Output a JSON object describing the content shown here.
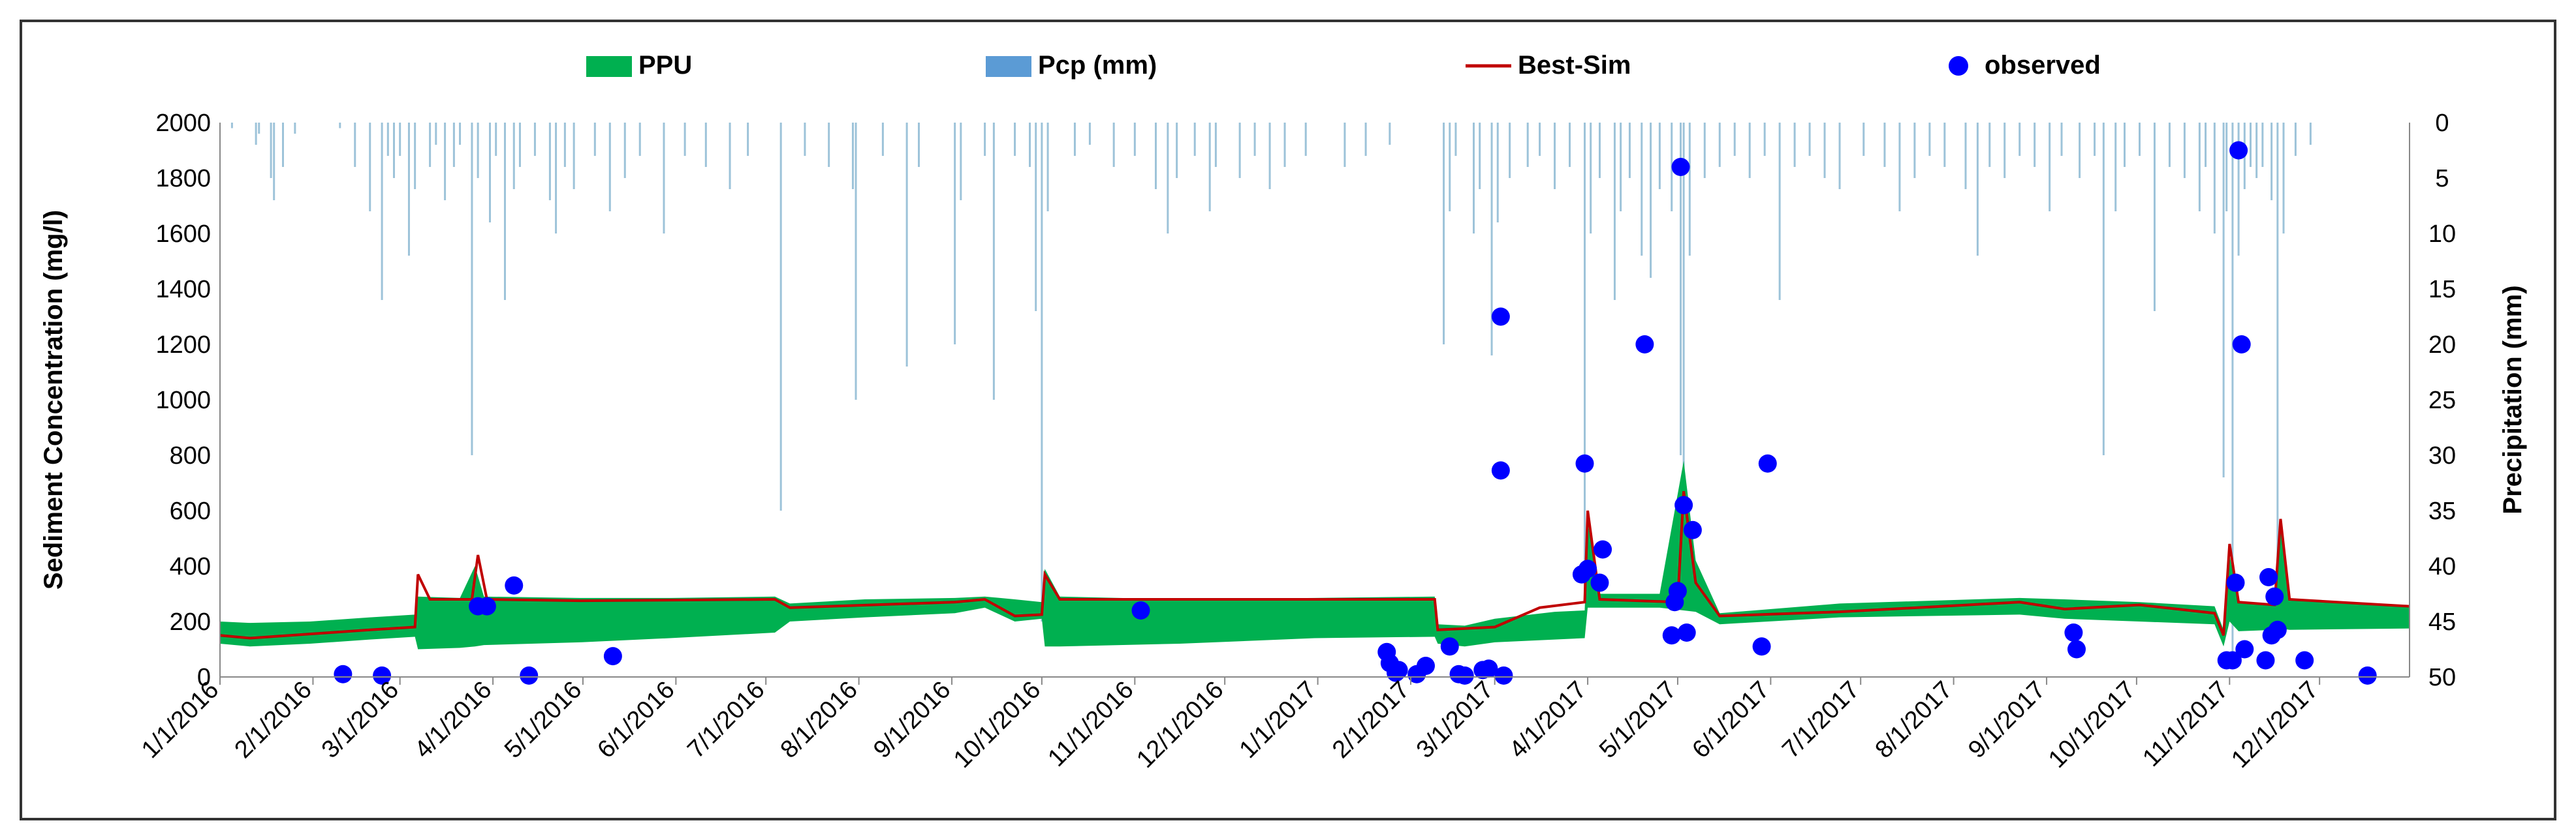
{
  "chart_data": {
    "type": "line",
    "title": "",
    "ylabel": "Sediment Concentration  (mg/l)",
    "y2label": "Precipitation (mm)",
    "xlabel": "",
    "ylim": [
      0,
      2000
    ],
    "y2lim": [
      0,
      50
    ],
    "y2_inverted": true,
    "yticks": [
      0,
      200,
      400,
      600,
      800,
      1000,
      1200,
      1400,
      1600,
      1800,
      2000
    ],
    "y2ticks": [
      0,
      5,
      10,
      15,
      20,
      25,
      30,
      35,
      40,
      45,
      50
    ],
    "xrange_days": [
      0,
      730
    ],
    "xticks": [
      {
        "label": "1/1/2016",
        "day": 0
      },
      {
        "label": "2/1/2016",
        "day": 31
      },
      {
        "label": "3/1/2016",
        "day": 60
      },
      {
        "label": "4/1/2016",
        "day": 91
      },
      {
        "label": "5/1/2016",
        "day": 121
      },
      {
        "label": "6/1/2016",
        "day": 152
      },
      {
        "label": "7/1/2016",
        "day": 182
      },
      {
        "label": "8/1/2016",
        "day": 213
      },
      {
        "label": "9/1/2016",
        "day": 244
      },
      {
        "label": "10/1/2016",
        "day": 274
      },
      {
        "label": "11/1/2016",
        "day": 305
      },
      {
        "label": "12/1/2016",
        "day": 335
      },
      {
        "label": "1/1/2017",
        "day": 366
      },
      {
        "label": "2/1/2017",
        "day": 397
      },
      {
        "label": "3/1/2017",
        "day": 425
      },
      {
        "label": "4/1/2017",
        "day": 456
      },
      {
        "label": "5/1/2017",
        "day": 486
      },
      {
        "label": "6/1/2017",
        "day": 517
      },
      {
        "label": "7/1/2017",
        "day": 547
      },
      {
        "label": "8/1/2017",
        "day": 578
      },
      {
        "label": "9/1/2017",
        "day": 609
      },
      {
        "label": "10/1/2017",
        "day": 639
      },
      {
        "label": "11/1/2017",
        "day": 670
      },
      {
        "label": "12/1/2017",
        "day": 700
      }
    ],
    "legend": [
      {
        "label": "PPU",
        "color": "#00b050",
        "kind": "area"
      },
      {
        "label": "Pcp (mm)",
        "color": "#5b9bd5",
        "kind": "bar"
      },
      {
        "label": "Best-Sim",
        "color": "#c00000",
        "kind": "line"
      },
      {
        "label": "observed",
        "color": "#0000ff",
        "kind": "marker"
      }
    ],
    "ppu_band": [
      {
        "day": 0,
        "lower": 120,
        "upper": 200
      },
      {
        "day": 10,
        "lower": 110,
        "upper": 195
      },
      {
        "day": 30,
        "lower": 120,
        "upper": 200
      },
      {
        "day": 50,
        "lower": 135,
        "upper": 215
      },
      {
        "day": 65,
        "lower": 145,
        "upper": 225
      },
      {
        "day": 66,
        "lower": 100,
        "upper": 290
      },
      {
        "day": 80,
        "lower": 105,
        "upper": 285
      },
      {
        "day": 85,
        "lower": 110,
        "upper": 400
      },
      {
        "day": 88,
        "lower": 115,
        "upper": 290
      },
      {
        "day": 120,
        "lower": 125,
        "upper": 285
      },
      {
        "day": 150,
        "lower": 140,
        "upper": 285
      },
      {
        "day": 185,
        "lower": 160,
        "upper": 290
      },
      {
        "day": 190,
        "lower": 200,
        "upper": 265
      },
      {
        "day": 215,
        "lower": 215,
        "upper": 280
      },
      {
        "day": 245,
        "lower": 230,
        "upper": 285
      },
      {
        "day": 255,
        "lower": 250,
        "upper": 290
      },
      {
        "day": 265,
        "lower": 200,
        "upper": 280
      },
      {
        "day": 274,
        "lower": 210,
        "upper": 270
      },
      {
        "day": 275,
        "lower": 110,
        "upper": 390
      },
      {
        "day": 280,
        "lower": 110,
        "upper": 290
      },
      {
        "day": 320,
        "lower": 120,
        "upper": 280
      },
      {
        "day": 365,
        "lower": 140,
        "upper": 285
      },
      {
        "day": 405,
        "lower": 145,
        "upper": 290
      },
      {
        "day": 406,
        "lower": 120,
        "upper": 190
      },
      {
        "day": 415,
        "lower": 110,
        "upper": 185
      },
      {
        "day": 425,
        "lower": 125,
        "upper": 210
      },
      {
        "day": 445,
        "lower": 135,
        "upper": 235
      },
      {
        "day": 455,
        "lower": 140,
        "upper": 240
      },
      {
        "day": 456,
        "lower": 250,
        "upper": 560
      },
      {
        "day": 460,
        "lower": 250,
        "upper": 300
      },
      {
        "day": 480,
        "lower": 250,
        "upper": 300
      },
      {
        "day": 488,
        "lower": 240,
        "upper": 780
      },
      {
        "day": 492,
        "lower": 235,
        "upper": 420
      },
      {
        "day": 500,
        "lower": 190,
        "upper": 230
      },
      {
        "day": 540,
        "lower": 215,
        "upper": 265
      },
      {
        "day": 600,
        "lower": 225,
        "upper": 285
      },
      {
        "day": 615,
        "lower": 210,
        "upper": 280
      },
      {
        "day": 640,
        "lower": 200,
        "upper": 270
      },
      {
        "day": 665,
        "lower": 190,
        "upper": 255
      },
      {
        "day": 668,
        "lower": 110,
        "upper": 170
      },
      {
        "day": 670,
        "lower": 200,
        "upper": 440
      },
      {
        "day": 673,
        "lower": 165,
        "upper": 270
      },
      {
        "day": 685,
        "lower": 170,
        "upper": 260
      },
      {
        "day": 687,
        "lower": 175,
        "upper": 540
      },
      {
        "day": 690,
        "lower": 170,
        "upper": 280
      },
      {
        "day": 730,
        "lower": 175,
        "upper": 255
      }
    ],
    "best_sim": [
      {
        "day": 0,
        "value": 150
      },
      {
        "day": 10,
        "value": 140
      },
      {
        "day": 30,
        "value": 155
      },
      {
        "day": 50,
        "value": 170
      },
      {
        "day": 65,
        "value": 180
      },
      {
        "day": 66,
        "value": 370
      },
      {
        "day": 70,
        "value": 280
      },
      {
        "day": 84,
        "value": 280
      },
      {
        "day": 86,
        "value": 440
      },
      {
        "day": 89,
        "value": 280
      },
      {
        "day": 120,
        "value": 275
      },
      {
        "day": 185,
        "value": 280
      },
      {
        "day": 190,
        "value": 250
      },
      {
        "day": 245,
        "value": 270
      },
      {
        "day": 255,
        "value": 280
      },
      {
        "day": 265,
        "value": 220
      },
      {
        "day": 274,
        "value": 225
      },
      {
        "day": 275,
        "value": 370
      },
      {
        "day": 280,
        "value": 280
      },
      {
        "day": 365,
        "value": 280
      },
      {
        "day": 405,
        "value": 280
      },
      {
        "day": 406,
        "value": 170
      },
      {
        "day": 425,
        "value": 180
      },
      {
        "day": 440,
        "value": 250
      },
      {
        "day": 455,
        "value": 270
      },
      {
        "day": 456,
        "value": 600
      },
      {
        "day": 460,
        "value": 280
      },
      {
        "day": 486,
        "value": 270
      },
      {
        "day": 488,
        "value": 670
      },
      {
        "day": 492,
        "value": 340
      },
      {
        "day": 500,
        "value": 220
      },
      {
        "day": 540,
        "value": 235
      },
      {
        "day": 600,
        "value": 270
      },
      {
        "day": 615,
        "value": 245
      },
      {
        "day": 640,
        "value": 260
      },
      {
        "day": 665,
        "value": 230
      },
      {
        "day": 668,
        "value": 150
      },
      {
        "day": 670,
        "value": 480
      },
      {
        "day": 673,
        "value": 270
      },
      {
        "day": 685,
        "value": 260
      },
      {
        "day": 687,
        "value": 570
      },
      {
        "day": 690,
        "value": 280
      },
      {
        "day": 730,
        "value": 255
      }
    ],
    "observed": [
      {
        "day": 41,
        "value": 10
      },
      {
        "day": 54,
        "value": 5
      },
      {
        "day": 86,
        "value": 255
      },
      {
        "day": 89,
        "value": 255
      },
      {
        "day": 98,
        "value": 330
      },
      {
        "day": 103,
        "value": 5
      },
      {
        "day": 131,
        "value": 75
      },
      {
        "day": 307,
        "value": 240
      },
      {
        "day": 389,
        "value": 90
      },
      {
        "day": 390,
        "value": 50
      },
      {
        "day": 392,
        "value": 15
      },
      {
        "day": 393,
        "value": 25
      },
      {
        "day": 399,
        "value": 10
      },
      {
        "day": 402,
        "value": 40
      },
      {
        "day": 410,
        "value": 110
      },
      {
        "day": 413,
        "value": 10
      },
      {
        "day": 415,
        "value": 5
      },
      {
        "day": 421,
        "value": 25
      },
      {
        "day": 423,
        "value": 30
      },
      {
        "day": 427,
        "value": 1300
      },
      {
        "day": 427,
        "value": 745
      },
      {
        "day": 428,
        "value": 5
      },
      {
        "day": 454,
        "value": 370
      },
      {
        "day": 455,
        "value": 770
      },
      {
        "day": 456,
        "value": 390
      },
      {
        "day": 460,
        "value": 340
      },
      {
        "day": 461,
        "value": 460
      },
      {
        "day": 475,
        "value": 1200
      },
      {
        "day": 484,
        "value": 150
      },
      {
        "day": 485,
        "value": 270
      },
      {
        "day": 486,
        "value": 310
      },
      {
        "day": 487,
        "value": 1840
      },
      {
        "day": 488,
        "value": 620
      },
      {
        "day": 489,
        "value": 160
      },
      {
        "day": 491,
        "value": 530
      },
      {
        "day": 514,
        "value": 110
      },
      {
        "day": 516,
        "value": 770
      },
      {
        "day": 618,
        "value": 160
      },
      {
        "day": 619,
        "value": 100
      },
      {
        "day": 669,
        "value": 60
      },
      {
        "day": 671,
        "value": 60
      },
      {
        "day": 672,
        "value": 340
      },
      {
        "day": 673,
        "value": 1900
      },
      {
        "day": 674,
        "value": 1200
      },
      {
        "day": 675,
        "value": 100
      },
      {
        "day": 682,
        "value": 60
      },
      {
        "day": 683,
        "value": 360
      },
      {
        "day": 684,
        "value": 150
      },
      {
        "day": 685,
        "value": 290
      },
      {
        "day": 686,
        "value": 170
      },
      {
        "day": 695,
        "value": 60
      },
      {
        "day": 716,
        "value": 5
      }
    ],
    "precipitation": [
      {
        "day": 4,
        "mm": 0.5
      },
      {
        "day": 12,
        "mm": 2
      },
      {
        "day": 13,
        "mm": 1
      },
      {
        "day": 17,
        "mm": 5
      },
      {
        "day": 18,
        "mm": 7
      },
      {
        "day": 21,
        "mm": 4
      },
      {
        "day": 25,
        "mm": 1
      },
      {
        "day": 40,
        "mm": 0.5
      },
      {
        "day": 45,
        "mm": 4
      },
      {
        "day": 50,
        "mm": 8
      },
      {
        "day": 54,
        "mm": 16
      },
      {
        "day": 56,
        "mm": 3
      },
      {
        "day": 58,
        "mm": 5
      },
      {
        "day": 60,
        "mm": 3
      },
      {
        "day": 63,
        "mm": 12
      },
      {
        "day": 65,
        "mm": 6
      },
      {
        "day": 70,
        "mm": 4
      },
      {
        "day": 72,
        "mm": 2
      },
      {
        "day": 75,
        "mm": 7
      },
      {
        "day": 78,
        "mm": 4
      },
      {
        "day": 80,
        "mm": 2
      },
      {
        "day": 84,
        "mm": 30
      },
      {
        "day": 86,
        "mm": 5
      },
      {
        "day": 90,
        "mm": 9
      },
      {
        "day": 92,
        "mm": 3
      },
      {
        "day": 95,
        "mm": 16
      },
      {
        "day": 98,
        "mm": 6
      },
      {
        "day": 100,
        "mm": 4
      },
      {
        "day": 105,
        "mm": 3
      },
      {
        "day": 110,
        "mm": 7
      },
      {
        "day": 112,
        "mm": 10
      },
      {
        "day": 115,
        "mm": 4
      },
      {
        "day": 118,
        "mm": 6
      },
      {
        "day": 125,
        "mm": 3
      },
      {
        "day": 130,
        "mm": 8
      },
      {
        "day": 135,
        "mm": 5
      },
      {
        "day": 140,
        "mm": 3
      },
      {
        "day": 148,
        "mm": 10
      },
      {
        "day": 155,
        "mm": 3
      },
      {
        "day": 162,
        "mm": 4
      },
      {
        "day": 170,
        "mm": 6
      },
      {
        "day": 176,
        "mm": 3
      },
      {
        "day": 187,
        "mm": 35
      },
      {
        "day": 195,
        "mm": 3
      },
      {
        "day": 203,
        "mm": 4
      },
      {
        "day": 211,
        "mm": 6
      },
      {
        "day": 212,
        "mm": 25
      },
      {
        "day": 221,
        "mm": 3
      },
      {
        "day": 229,
        "mm": 22
      },
      {
        "day": 233,
        "mm": 4
      },
      {
        "day": 245,
        "mm": 20
      },
      {
        "day": 247,
        "mm": 7
      },
      {
        "day": 255,
        "mm": 3
      },
      {
        "day": 258,
        "mm": 25
      },
      {
        "day": 265,
        "mm": 3
      },
      {
        "day": 270,
        "mm": 4
      },
      {
        "day": 272,
        "mm": 17
      },
      {
        "day": 274,
        "mm": 45
      },
      {
        "day": 276,
        "mm": 8
      },
      {
        "day": 285,
        "mm": 3
      },
      {
        "day": 290,
        "mm": 2
      },
      {
        "day": 298,
        "mm": 4
      },
      {
        "day": 305,
        "mm": 3
      },
      {
        "day": 312,
        "mm": 6
      },
      {
        "day": 316,
        "mm": 10
      },
      {
        "day": 319,
        "mm": 5
      },
      {
        "day": 325,
        "mm": 3
      },
      {
        "day": 330,
        "mm": 8
      },
      {
        "day": 332,
        "mm": 4
      },
      {
        "day": 340,
        "mm": 5
      },
      {
        "day": 345,
        "mm": 3
      },
      {
        "day": 350,
        "mm": 6
      },
      {
        "day": 355,
        "mm": 4
      },
      {
        "day": 362,
        "mm": 3
      },
      {
        "day": 375,
        "mm": 4
      },
      {
        "day": 382,
        "mm": 3
      },
      {
        "day": 390,
        "mm": 2
      },
      {
        "day": 408,
        "mm": 20
      },
      {
        "day": 410,
        "mm": 8
      },
      {
        "day": 412,
        "mm": 3
      },
      {
        "day": 418,
        "mm": 10
      },
      {
        "day": 420,
        "mm": 6
      },
      {
        "day": 424,
        "mm": 21
      },
      {
        "day": 426,
        "mm": 9
      },
      {
        "day": 430,
        "mm": 5
      },
      {
        "day": 436,
        "mm": 4
      },
      {
        "day": 440,
        "mm": 3
      },
      {
        "day": 445,
        "mm": 6
      },
      {
        "day": 450,
        "mm": 4
      },
      {
        "day": 455,
        "mm": 43
      },
      {
        "day": 457,
        "mm": 10
      },
      {
        "day": 460,
        "mm": 5
      },
      {
        "day": 465,
        "mm": 16
      },
      {
        "day": 467,
        "mm": 8
      },
      {
        "day": 470,
        "mm": 5
      },
      {
        "day": 474,
        "mm": 12
      },
      {
        "day": 477,
        "mm": 14
      },
      {
        "day": 480,
        "mm": 6
      },
      {
        "day": 484,
        "mm": 8
      },
      {
        "day": 487,
        "mm": 30
      },
      {
        "day": 488,
        "mm": 37
      },
      {
        "day": 490,
        "mm": 12
      },
      {
        "day": 495,
        "mm": 5
      },
      {
        "day": 500,
        "mm": 4
      },
      {
        "day": 505,
        "mm": 3
      },
      {
        "day": 510,
        "mm": 5
      },
      {
        "day": 515,
        "mm": 3
      },
      {
        "day": 520,
        "mm": 16
      },
      {
        "day": 525,
        "mm": 4
      },
      {
        "day": 530,
        "mm": 3
      },
      {
        "day": 535,
        "mm": 5
      },
      {
        "day": 540,
        "mm": 6
      },
      {
        "day": 548,
        "mm": 3
      },
      {
        "day": 555,
        "mm": 4
      },
      {
        "day": 560,
        "mm": 8
      },
      {
        "day": 565,
        "mm": 5
      },
      {
        "day": 570,
        "mm": 3
      },
      {
        "day": 575,
        "mm": 4
      },
      {
        "day": 582,
        "mm": 6
      },
      {
        "day": 586,
        "mm": 12
      },
      {
        "day": 590,
        "mm": 4
      },
      {
        "day": 595,
        "mm": 5
      },
      {
        "day": 600,
        "mm": 3
      },
      {
        "day": 605,
        "mm": 4
      },
      {
        "day": 610,
        "mm": 8
      },
      {
        "day": 614,
        "mm": 3
      },
      {
        "day": 620,
        "mm": 5
      },
      {
        "day": 625,
        "mm": 3
      },
      {
        "day": 628,
        "mm": 30
      },
      {
        "day": 632,
        "mm": 8
      },
      {
        "day": 635,
        "mm": 4
      },
      {
        "day": 640,
        "mm": 3
      },
      {
        "day": 645,
        "mm": 17
      },
      {
        "day": 650,
        "mm": 4
      },
      {
        "day": 655,
        "mm": 5
      },
      {
        "day": 660,
        "mm": 8
      },
      {
        "day": 662,
        "mm": 4
      },
      {
        "day": 665,
        "mm": 10
      },
      {
        "day": 668,
        "mm": 32
      },
      {
        "day": 669,
        "mm": 8
      },
      {
        "day": 671,
        "mm": 48
      },
      {
        "day": 673,
        "mm": 12
      },
      {
        "day": 675,
        "mm": 6
      },
      {
        "day": 677,
        "mm": 4
      },
      {
        "day": 679,
        "mm": 5
      },
      {
        "day": 681,
        "mm": 4
      },
      {
        "day": 684,
        "mm": 7
      },
      {
        "day": 686,
        "mm": 44
      },
      {
        "day": 688,
        "mm": 10
      },
      {
        "day": 692,
        "mm": 3
      },
      {
        "day": 697,
        "mm": 2
      }
    ]
  }
}
